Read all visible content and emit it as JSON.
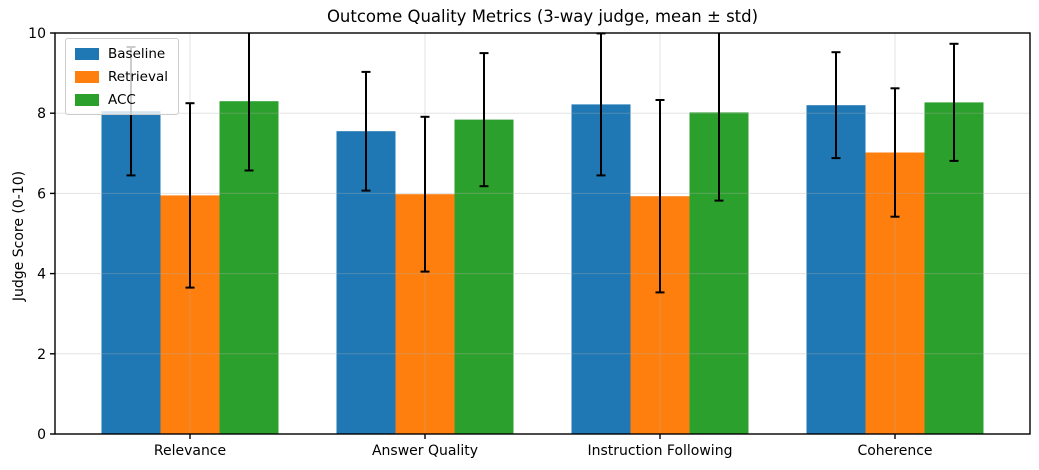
{
  "chart_data": {
    "type": "bar",
    "title": "Outcome Quality Metrics (3-way judge, mean ± std)",
    "ylabel": "Judge Score (0-10)",
    "xlabel": "",
    "categories": [
      "Relevance",
      "Answer Quality",
      "Instruction Following",
      "Coherence"
    ],
    "series": [
      {
        "name": "Baseline",
        "color": "#1f77b4",
        "means": [
          8.05,
          7.55,
          8.22,
          8.2
        ],
        "stds": [
          1.6,
          1.48,
          1.77,
          1.32
        ]
      },
      {
        "name": "Retrieval",
        "color": "#ff7f0e",
        "means": [
          5.95,
          5.98,
          5.93,
          7.02
        ],
        "stds": [
          2.3,
          1.93,
          2.4,
          1.6
        ]
      },
      {
        "name": "ACC",
        "color": "#2ca02c",
        "means": [
          8.3,
          7.84,
          8.02,
          8.27
        ],
        "stds": [
          1.73,
          1.66,
          2.2,
          1.46
        ]
      }
    ],
    "error_bars": "± std, black, capped, clipped at y=10",
    "y_ticks": [
      0,
      2,
      4,
      6,
      8,
      10
    ],
    "ylim": [
      0,
      10
    ],
    "grid": true,
    "grid_color": "#b0b0b0",
    "legend_position": "upper left",
    "error_bar_color": "#000000",
    "axis_color": "#000000"
  }
}
